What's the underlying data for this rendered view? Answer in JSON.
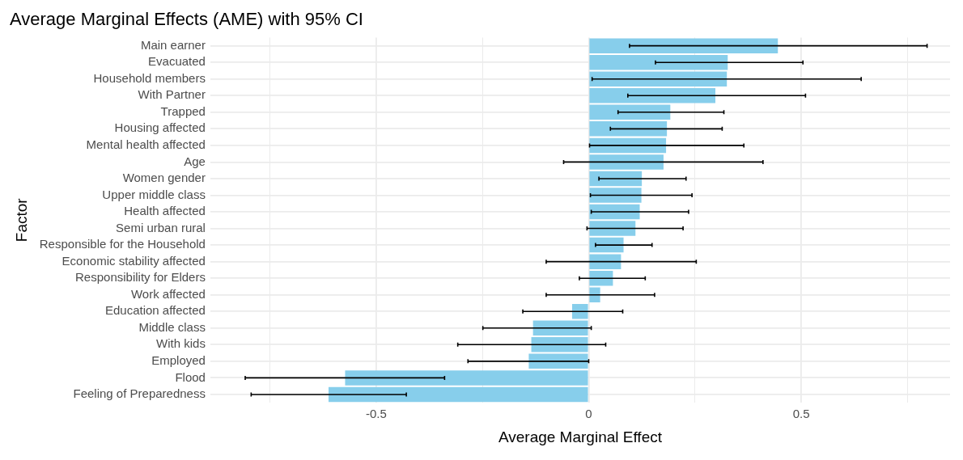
{
  "chart_data": {
    "type": "bar",
    "orientation": "horizontal",
    "title": "Average Marginal Effects (AME) with 95% CI",
    "xlabel": "Average Marginal Effect",
    "ylabel": "Factor",
    "categories": [
      "Main earner",
      "Evacuated",
      "Household members",
      "With Partner",
      "Trapped",
      "Housing affected",
      "Mental health affected",
      "Age",
      "Women gender",
      "Upper middle class",
      "Health affected",
      "Semi urban rural",
      "Responsible for the Household",
      "Economic stability affected",
      "Responsibility for Elders",
      "Work affected",
      "Education affected",
      "Middle class",
      "With kids",
      "Employed",
      "Flood",
      "Feeling of Preparedness"
    ],
    "values": [
      0.445,
      0.327,
      0.325,
      0.298,
      0.192,
      0.184,
      0.182,
      0.176,
      0.125,
      0.124,
      0.12,
      0.11,
      0.082,
      0.076,
      0.057,
      0.027,
      -0.039,
      -0.131,
      -0.135,
      -0.141,
      -0.573,
      -0.612
    ],
    "errors": [
      [
        0.096,
        0.796
      ],
      [
        0.157,
        0.504
      ],
      [
        0.008,
        0.641
      ],
      [
        0.092,
        0.51
      ],
      [
        0.069,
        0.318
      ],
      [
        0.051,
        0.314
      ],
      [
        0.002,
        0.365
      ],
      [
        -0.059,
        0.41
      ],
      [
        0.024,
        0.229
      ],
      [
        0.004,
        0.243
      ],
      [
        0.006,
        0.235
      ],
      [
        -0.004,
        0.222
      ],
      [
        0.016,
        0.149
      ],
      [
        -0.1,
        0.253
      ],
      [
        -0.022,
        0.133
      ],
      [
        -0.1,
        0.155
      ],
      [
        -0.155,
        0.08
      ],
      [
        -0.249,
        0.006
      ],
      [
        -0.308,
        0.04
      ],
      [
        -0.284,
        0
      ],
      [
        -0.808,
        -0.339
      ],
      [
        -0.794,
        -0.429
      ]
    ],
    "color": "#87ceeb",
    "xlim": [
      -0.89,
      0.85
    ],
    "xticks": [
      {
        "value": -0.75,
        "label": null
      },
      -0.5,
      {
        "value": -0.25,
        "label": null
      },
      0,
      {
        "value": 0.25,
        "label": null
      },
      0.5,
      {
        "value": 0.75,
        "label": null
      }
    ],
    "grid": true
  }
}
